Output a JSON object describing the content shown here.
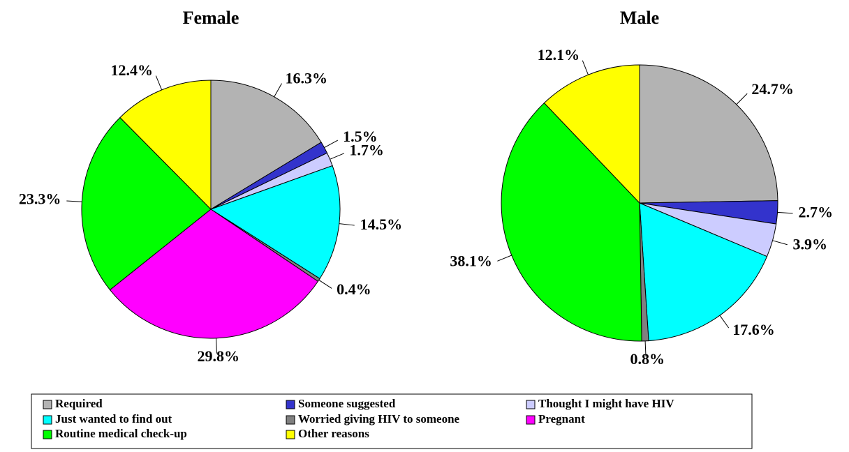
{
  "chart_data": [
    {
      "type": "pie",
      "title": "Female",
      "categories": [
        "Required",
        "Someone suggested",
        "Thought I might have HIV",
        "Just wanted to find out",
        "Worried giving HIV to someone",
        "Pregnant",
        "Routine medical check-up",
        "Other reasons"
      ],
      "values": [
        16.3,
        1.5,
        1.7,
        14.5,
        0.4,
        29.8,
        23.3,
        12.4
      ],
      "value_labels": [
        "16.3%",
        "1.5%",
        "1.7%",
        "14.5%",
        "0.4%",
        "29.8%",
        "23.3%",
        "12.4%"
      ],
      "colors": [
        "#b3b3b3",
        "#3333cc",
        "#ccccff",
        "#00ffff",
        "#808080",
        "#ff00ff",
        "#00ff00",
        "#ffff00"
      ]
    },
    {
      "type": "pie",
      "title": "Male",
      "categories": [
        "Required",
        "Someone suggested",
        "Thought I might have HIV",
        "Just wanted to find out",
        "Worried giving HIV to someone",
        "Routine medical check-up",
        "Other reasons"
      ],
      "values": [
        24.7,
        2.7,
        3.9,
        17.6,
        0.8,
        38.1,
        12.1
      ],
      "value_labels": [
        "24.7%",
        "2.7%",
        "3.9%",
        "17.6%",
        "0.8%",
        "38.1%",
        "12.1%"
      ],
      "colors": [
        "#b3b3b3",
        "#3333cc",
        "#ccccff",
        "#00ffff",
        "#808080",
        "#00ff00",
        "#ffff00"
      ]
    }
  ]
}
